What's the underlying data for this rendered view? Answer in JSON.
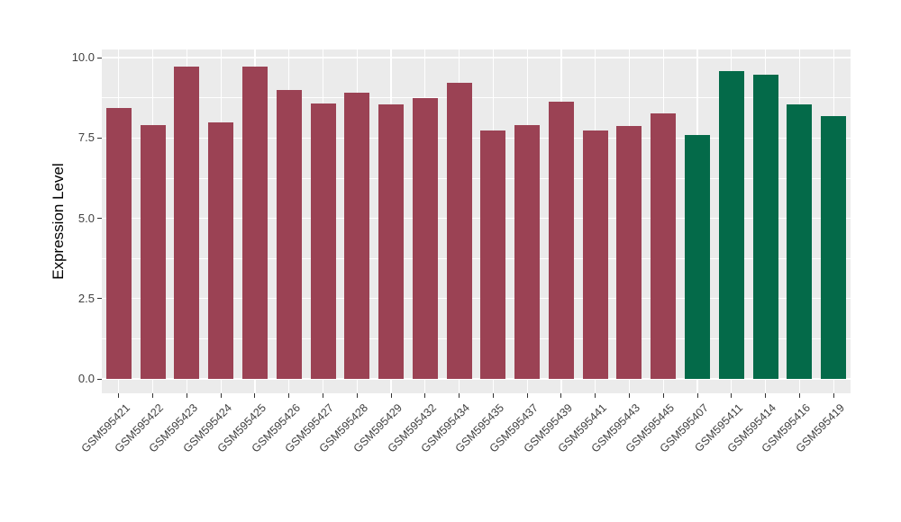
{
  "figure": {
    "background": "#FFFFFF",
    "panel_background": "#EBEBEB",
    "grid_color": "#FFFFFF",
    "tick_color": "#333333",
    "axis_text_color": "#404040",
    "axis_title_color": "#000000"
  },
  "chart_data": {
    "type": "bar",
    "title": "",
    "xlabel": "",
    "ylabel": "Expression Level",
    "categories": [
      "GSM595421",
      "GSM595422",
      "GSM595423",
      "GSM595424",
      "GSM595425",
      "GSM595426",
      "GSM595427",
      "GSM595428",
      "GSM595429",
      "GSM595432",
      "GSM595434",
      "GSM595435",
      "GSM595437",
      "GSM595439",
      "GSM595441",
      "GSM595443",
      "GSM595445",
      "GSM595407",
      "GSM595411",
      "GSM595414",
      "GSM595416",
      "GSM595419"
    ],
    "values": [
      8.44,
      7.91,
      9.71,
      7.97,
      9.73,
      9.0,
      8.58,
      8.92,
      8.53,
      8.75,
      9.21,
      7.74,
      7.91,
      8.64,
      7.74,
      7.86,
      8.27,
      7.58,
      9.58,
      9.48,
      8.53,
      8.19
    ],
    "colors": [
      "#9B4254",
      "#9B4254",
      "#9B4254",
      "#9B4254",
      "#9B4254",
      "#9B4254",
      "#9B4254",
      "#9B4254",
      "#9B4254",
      "#9B4254",
      "#9B4254",
      "#9B4254",
      "#9B4254",
      "#9B4254",
      "#9B4254",
      "#9B4254",
      "#9B4254",
      "#046A49",
      "#046A49",
      "#046A49",
      "#046A49",
      "#046A49"
    ],
    "group_colors": {
      "maroon_group": "#9B4254",
      "green_group": "#046A49"
    },
    "ylim": [
      -0.4,
      10.25
    ],
    "yticks": [
      {
        "value": 0,
        "label": "0.0"
      },
      {
        "value": 2.5,
        "label": "2.5"
      },
      {
        "value": 5,
        "label": "5.0"
      },
      {
        "value": 7.5,
        "label": "7.5"
      },
      {
        "value": 10,
        "label": "10.0"
      }
    ],
    "minor_gridlines": [
      1.25,
      3.75,
      6.25,
      8.75
    ],
    "grid": true,
    "legend": "none",
    "x_label_angle": 45
  }
}
